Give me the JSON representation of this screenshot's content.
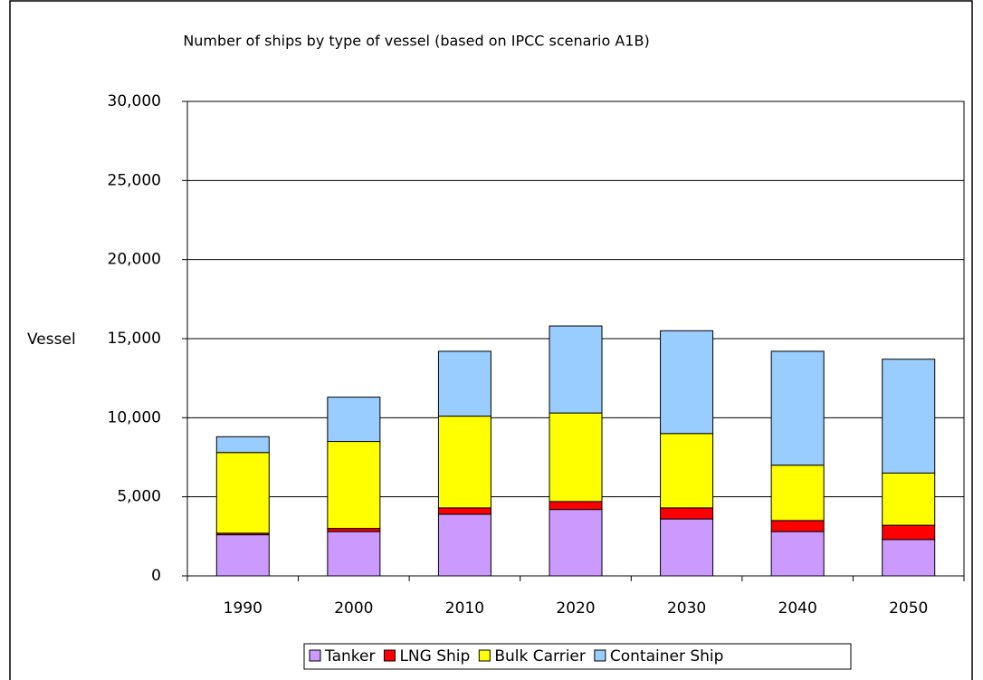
{
  "chart_data": {
    "type": "stacked_bar",
    "title": "Number of ships by type of vessel (based on IPCC scenario A1B)",
    "y_label": "Vessel",
    "categories": [
      "1990",
      "2000",
      "2010",
      "2020",
      "2030",
      "2040",
      "2050"
    ],
    "series": [
      {
        "name": "Tanker",
        "color": "#cc99ff",
        "values": [
          2600,
          2800,
          3900,
          4200,
          3600,
          2800,
          2300
        ]
      },
      {
        "name": "LNG Ship",
        "color": "#ff0000",
        "values": [
          100,
          200,
          400,
          500,
          700,
          700,
          900
        ]
      },
      {
        "name": "Bulk Carrier",
        "color": "#ffff00",
        "values": [
          5100,
          5500,
          5800,
          5600,
          4700,
          3500,
          3300
        ]
      },
      {
        "name": "Container Ship",
        "color": "#99ccff",
        "values": [
          1000,
          2800,
          4100,
          5500,
          6500,
          7200,
          7200
        ]
      }
    ],
    "ylim": [
      0,
      30000
    ],
    "yticks": [
      0,
      {
        "value": 5000,
        "label": "5,000"
      },
      {
        "value": 10000,
        "label": "10,000"
      },
      {
        "value": 15000,
        "label": "15,000"
      },
      {
        "value": 20000,
        "label": "20,000"
      },
      {
        "value": 25000,
        "label": "25,000"
      },
      {
        "value": 30000,
        "label": "30,000"
      }
    ],
    "grid": true
  }
}
